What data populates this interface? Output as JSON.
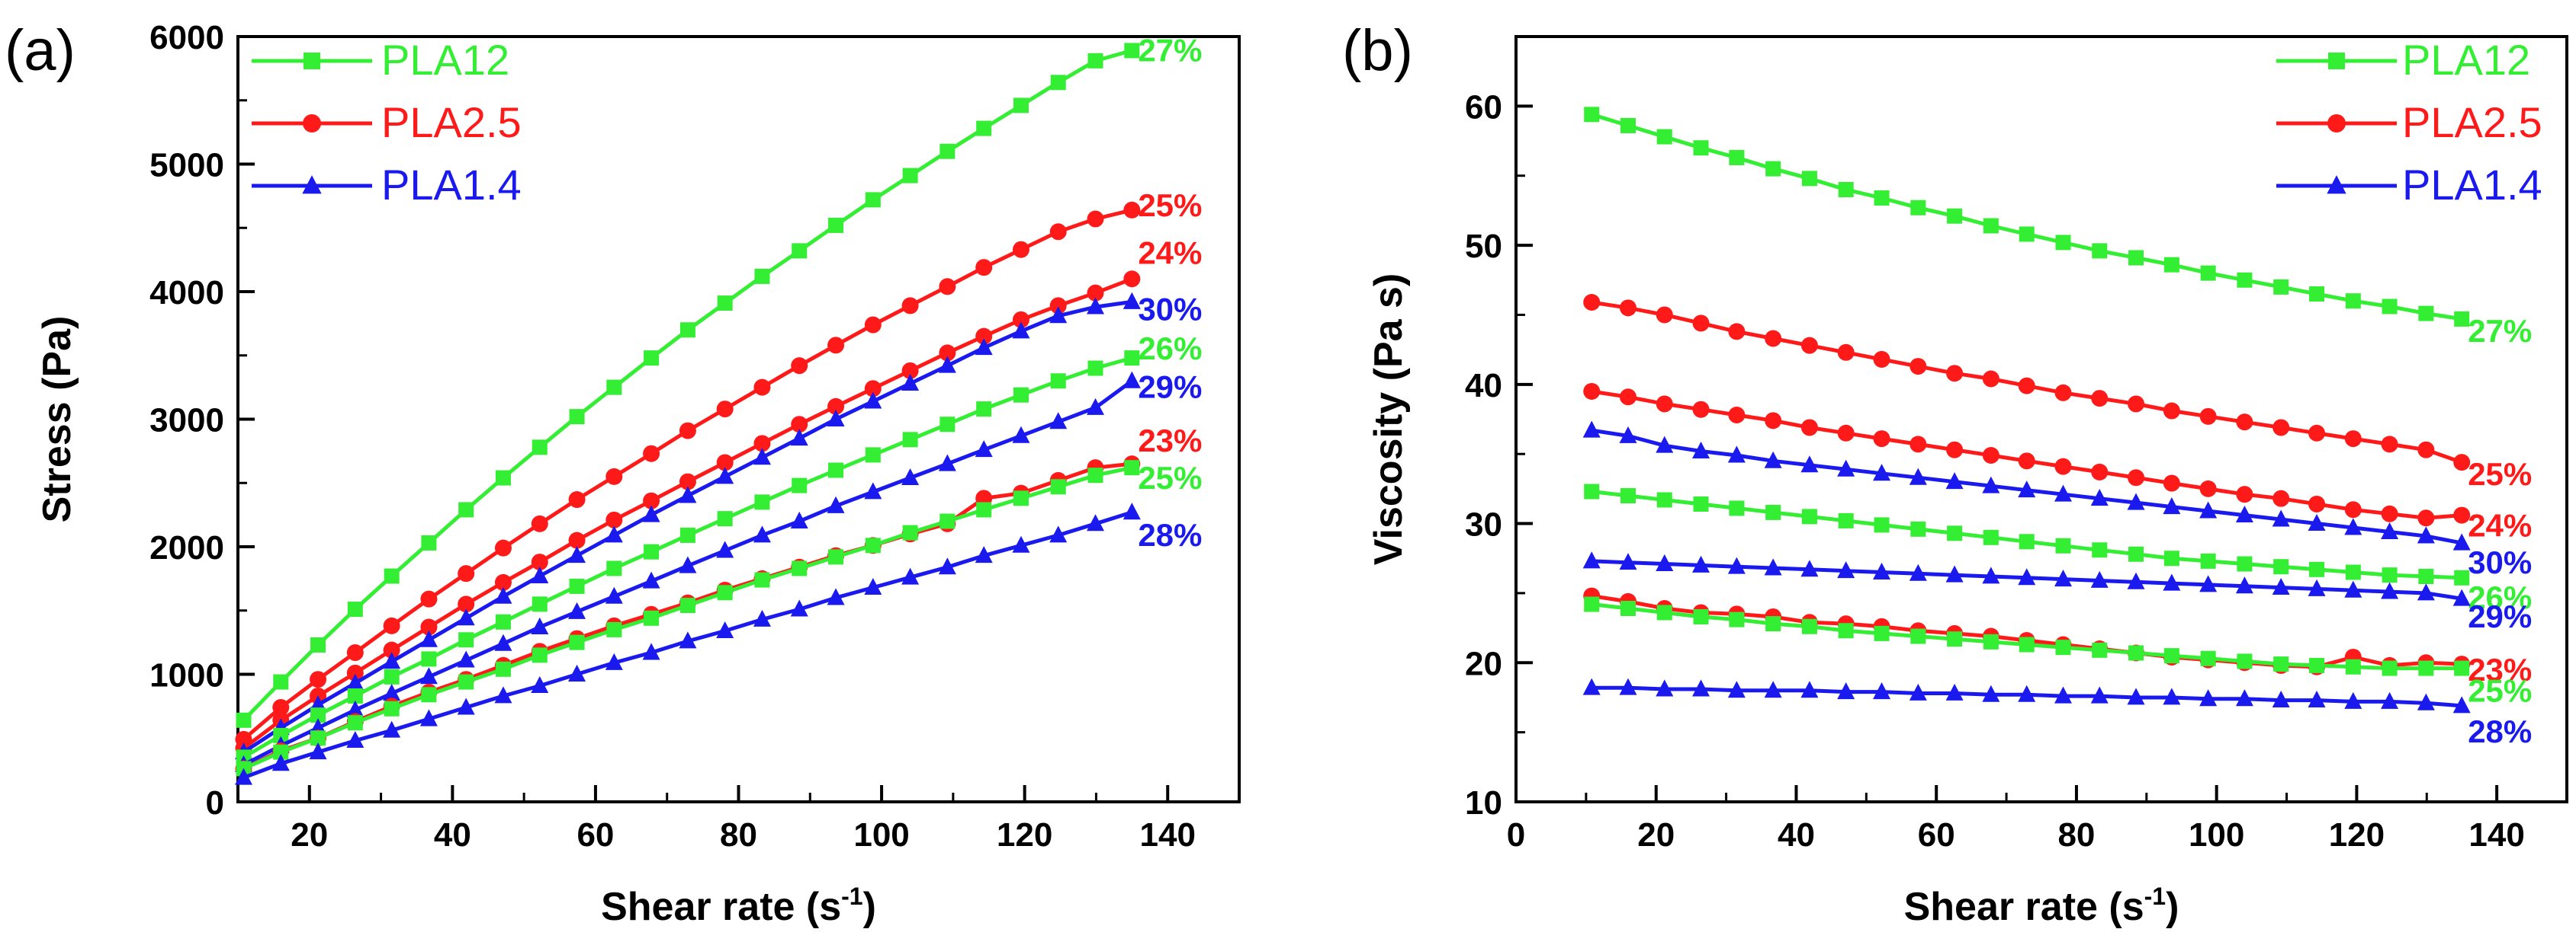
{
  "colors": {
    "PLA12": "#33ee33",
    "PLA2.5": "#ff1a1a",
    "PLA1.4": "#1a1aee"
  },
  "x_values": [
    10.8,
    16.0,
    21.2,
    26.4,
    31.5,
    36.7,
    41.9,
    47.1,
    52.2,
    57.4,
    62.6,
    67.8,
    72.9,
    78.1,
    83.3,
    88.5,
    93.6,
    98.8,
    104.0,
    109.2,
    114.3,
    119.5,
    124.7,
    129.9,
    135.0
  ],
  "chart_data": [
    {
      "type": "line",
      "panel_label": "(a)",
      "xlabel": "Shear rate (s",
      "xlabel_sup": "-1",
      "xlabel_close": ")",
      "ylabel": "Stress (Pa)",
      "xlim": [
        10,
        150
      ],
      "ylim": [
        0,
        6000
      ],
      "xticks": [
        20,
        40,
        60,
        80,
        100,
        120,
        140
      ],
      "yticks": [
        0,
        1000,
        2000,
        3000,
        4000,
        5000,
        6000
      ],
      "xtick_labels": [
        "20",
        "40",
        "60",
        "80",
        "100",
        "120",
        "140"
      ],
      "ytick_labels": [
        "0",
        "1000",
        "2000",
        "3000",
        "4000",
        "5000",
        "6000"
      ],
      "legend": [
        {
          "name": "PLA12",
          "marker": "square"
        },
        {
          "name": "PLA2.5",
          "marker": "circle"
        },
        {
          "name": "PLA1.4",
          "marker": "triangle"
        }
      ],
      "series": [
        {
          "name": "PLA12",
          "label": "27%",
          "marker": "square",
          "values": [
            640,
            940,
            1230,
            1510,
            1770,
            2030,
            2290,
            2540,
            2780,
            3020,
            3250,
            3480,
            3700,
            3910,
            4120,
            4320,
            4520,
            4720,
            4910,
            5100,
            5280,
            5460,
            5640,
            5810,
            5890
          ]
        },
        {
          "name": "PLA2.5",
          "label": "25%",
          "marker": "circle",
          "values": [
            490,
            740,
            960,
            1170,
            1380,
            1590,
            1790,
            1990,
            2180,
            2370,
            2550,
            2730,
            2910,
            3080,
            3250,
            3420,
            3580,
            3740,
            3890,
            4040,
            4190,
            4330,
            4470,
            4570,
            4640
          ]
        },
        {
          "name": "PLA2.5",
          "label": "24%",
          "marker": "circle",
          "values": [
            420,
            640,
            830,
            1010,
            1190,
            1370,
            1550,
            1720,
            1880,
            2050,
            2210,
            2360,
            2510,
            2660,
            2810,
            2960,
            3100,
            3240,
            3380,
            3520,
            3650,
            3780,
            3890,
            3990,
            4100
          ]
        },
        {
          "name": "PLA1.4",
          "label": "30%",
          "marker": "triangle",
          "values": [
            390,
            580,
            760,
            930,
            1100,
            1270,
            1440,
            1610,
            1770,
            1930,
            2090,
            2250,
            2400,
            2550,
            2700,
            2850,
            3000,
            3140,
            3280,
            3420,
            3560,
            3690,
            3810,
            3880,
            3920
          ]
        },
        {
          "name": "PLA12",
          "label": "26%",
          "marker": "square",
          "values": [
            350,
            520,
            680,
            830,
            980,
            1120,
            1270,
            1410,
            1550,
            1690,
            1830,
            1960,
            2090,
            2220,
            2350,
            2480,
            2600,
            2720,
            2840,
            2960,
            3080,
            3190,
            3300,
            3400,
            3480
          ]
        },
        {
          "name": "PLA1.4",
          "label": "29%",
          "marker": "triangle",
          "values": [
            290,
            440,
            580,
            720,
            850,
            980,
            1110,
            1240,
            1370,
            1490,
            1610,
            1730,
            1850,
            1970,
            2090,
            2200,
            2320,
            2430,
            2540,
            2650,
            2760,
            2870,
            2980,
            3090,
            3300
          ]
        },
        {
          "name": "PLA2.5",
          "label": "23%",
          "marker": "circle",
          "values": [
            260,
            400,
            500,
            630,
            750,
            860,
            960,
            1070,
            1180,
            1280,
            1380,
            1470,
            1560,
            1660,
            1750,
            1840,
            1930,
            2010,
            2100,
            2180,
            2380,
            2420,
            2520,
            2620,
            2650
          ]
        },
        {
          "name": "PLA12",
          "label": "25%",
          "marker": "square",
          "values": [
            260,
            390,
            500,
            620,
            730,
            840,
            940,
            1040,
            1150,
            1250,
            1350,
            1440,
            1540,
            1640,
            1740,
            1830,
            1920,
            2010,
            2110,
            2200,
            2290,
            2380,
            2470,
            2560,
            2620
          ]
        },
        {
          "name": "PLA1.4",
          "label": "28%",
          "marker": "triangle",
          "values": [
            190,
            300,
            390,
            480,
            560,
            650,
            740,
            830,
            910,
            1000,
            1090,
            1170,
            1260,
            1340,
            1430,
            1510,
            1600,
            1680,
            1760,
            1840,
            1930,
            2010,
            2090,
            2180,
            2270
          ]
        }
      ]
    },
    {
      "type": "line",
      "panel_label": "(b)",
      "xlabel": "Shear rate (s",
      "xlabel_sup": "-1",
      "xlabel_close": ")",
      "ylabel": "Viscosity (Pa s)",
      "xlim": [
        0,
        150
      ],
      "ylim": [
        10,
        65
      ],
      "xticks": [
        0,
        20,
        40,
        60,
        80,
        100,
        120,
        140
      ],
      "yticks": [
        10,
        20,
        30,
        40,
        50,
        60
      ],
      "xtick_labels": [
        "0",
        "20",
        "40",
        "60",
        "80",
        "100",
        "120",
        "140"
      ],
      "ytick_labels": [
        "10",
        "20",
        "30",
        "40",
        "50",
        "60"
      ],
      "legend": [
        {
          "name": "PLA12",
          "marker": "square"
        },
        {
          "name": "PLA2.5",
          "marker": "circle"
        },
        {
          "name": "PLA1.4",
          "marker": "triangle"
        }
      ],
      "series": [
        {
          "name": "PLA12",
          "label": "27%",
          "marker": "square",
          "values": [
            59.4,
            58.6,
            57.8,
            57.0,
            56.3,
            55.5,
            54.8,
            54.0,
            53.4,
            52.7,
            52.1,
            51.4,
            50.8,
            50.2,
            49.6,
            49.1,
            48.6,
            48.0,
            47.5,
            47.0,
            46.5,
            46.0,
            45.6,
            45.1,
            44.7
          ]
        },
        {
          "name": "PLA2.5",
          "label": "25%",
          "marker": "circle",
          "values": [
            45.9,
            45.5,
            45.0,
            44.4,
            43.8,
            43.3,
            42.8,
            42.3,
            41.8,
            41.3,
            40.8,
            40.4,
            39.9,
            39.4,
            39.0,
            38.6,
            38.1,
            37.7,
            37.3,
            36.9,
            36.5,
            36.1,
            35.7,
            35.3,
            34.4
          ]
        },
        {
          "name": "PLA2.5",
          "label": "24%",
          "marker": "circle",
          "values": [
            39.5,
            39.1,
            38.6,
            38.2,
            37.8,
            37.4,
            36.9,
            36.5,
            36.1,
            35.7,
            35.3,
            34.9,
            34.5,
            34.1,
            33.7,
            33.3,
            32.9,
            32.5,
            32.1,
            31.8,
            31.4,
            31.0,
            30.7,
            30.4,
            30.6
          ]
        },
        {
          "name": "PLA1.4",
          "label": "30%",
          "marker": "triangle",
          "values": [
            36.7,
            36.3,
            35.6,
            35.2,
            34.9,
            34.5,
            34.2,
            33.9,
            33.6,
            33.3,
            33.0,
            32.7,
            32.4,
            32.1,
            31.8,
            31.5,
            31.2,
            30.9,
            30.6,
            30.3,
            30.0,
            29.7,
            29.4,
            29.1,
            28.6
          ]
        },
        {
          "name": "PLA12",
          "label": "26%",
          "marker": "square",
          "values": [
            32.3,
            32.0,
            31.7,
            31.4,
            31.1,
            30.8,
            30.5,
            30.2,
            29.9,
            29.6,
            29.3,
            29.0,
            28.7,
            28.4,
            28.1,
            27.8,
            27.5,
            27.3,
            27.1,
            26.9,
            26.7,
            26.5,
            26.3,
            26.2,
            26.1
          ]
        },
        {
          "name": "PLA1.4",
          "label": "29%",
          "marker": "triangle",
          "values": [
            27.3,
            27.2,
            27.1,
            27.0,
            26.9,
            26.8,
            26.7,
            26.6,
            26.5,
            26.4,
            26.3,
            26.2,
            26.1,
            26.0,
            25.9,
            25.8,
            25.7,
            25.6,
            25.5,
            25.4,
            25.3,
            25.2,
            25.1,
            25.0,
            24.6
          ]
        },
        {
          "name": "PLA2.5",
          "label": "23%",
          "marker": "circle",
          "values": [
            24.8,
            24.4,
            23.9,
            23.6,
            23.5,
            23.3,
            22.9,
            22.8,
            22.6,
            22.3,
            22.1,
            21.9,
            21.6,
            21.3,
            21.0,
            20.7,
            20.4,
            20.2,
            20.0,
            19.8,
            19.7,
            20.4,
            19.8,
            20.0,
            19.9
          ]
        },
        {
          "name": "PLA12",
          "label": "25%",
          "marker": "square",
          "values": [
            24.2,
            23.9,
            23.6,
            23.3,
            23.1,
            22.8,
            22.6,
            22.3,
            22.1,
            21.9,
            21.7,
            21.5,
            21.3,
            21.1,
            20.9,
            20.7,
            20.5,
            20.3,
            20.1,
            19.9,
            19.8,
            19.7,
            19.6,
            19.6,
            19.6
          ]
        },
        {
          "name": "PLA1.4",
          "label": "28%",
          "marker": "triangle",
          "values": [
            18.2,
            18.2,
            18.1,
            18.1,
            18.0,
            18.0,
            18.0,
            17.9,
            17.9,
            17.8,
            17.8,
            17.7,
            17.7,
            17.6,
            17.6,
            17.5,
            17.5,
            17.4,
            17.4,
            17.3,
            17.3,
            17.2,
            17.2,
            17.1,
            16.9
          ]
        }
      ]
    }
  ]
}
